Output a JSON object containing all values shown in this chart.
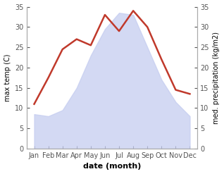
{
  "months": [
    "Jan",
    "Feb",
    "Mar",
    "Apr",
    "May",
    "Jun",
    "Jul",
    "Aug",
    "Sep",
    "Oct",
    "Nov",
    "Dec"
  ],
  "precipitation": [
    8.5,
    8.0,
    9.5,
    15.0,
    23.0,
    29.5,
    33.5,
    33.0,
    25.0,
    17.0,
    11.5,
    8.0
  ],
  "max_temp": [
    11.0,
    17.5,
    24.5,
    27.0,
    25.5,
    33.0,
    29.0,
    34.0,
    30.0,
    22.0,
    14.5,
    13.5
  ],
  "precip_color": "#c5cdf0",
  "precip_alpha": 0.75,
  "temp_color": "#c0392b",
  "temp_linewidth": 1.8,
  "ylim": [
    0,
    35
  ],
  "yticks": [
    0,
    5,
    10,
    15,
    20,
    25,
    30,
    35
  ],
  "ylabel_left": "max temp (C)",
  "ylabel_right": "med. precipitation (kg/m2)",
  "xlabel": "date (month)",
  "bg_color": "#ffffff",
  "spine_color": "#aaaaaa",
  "tick_color": "#555555",
  "label_fontsize": 7,
  "xlabel_fontsize": 8,
  "ylabel_fontsize": 7
}
